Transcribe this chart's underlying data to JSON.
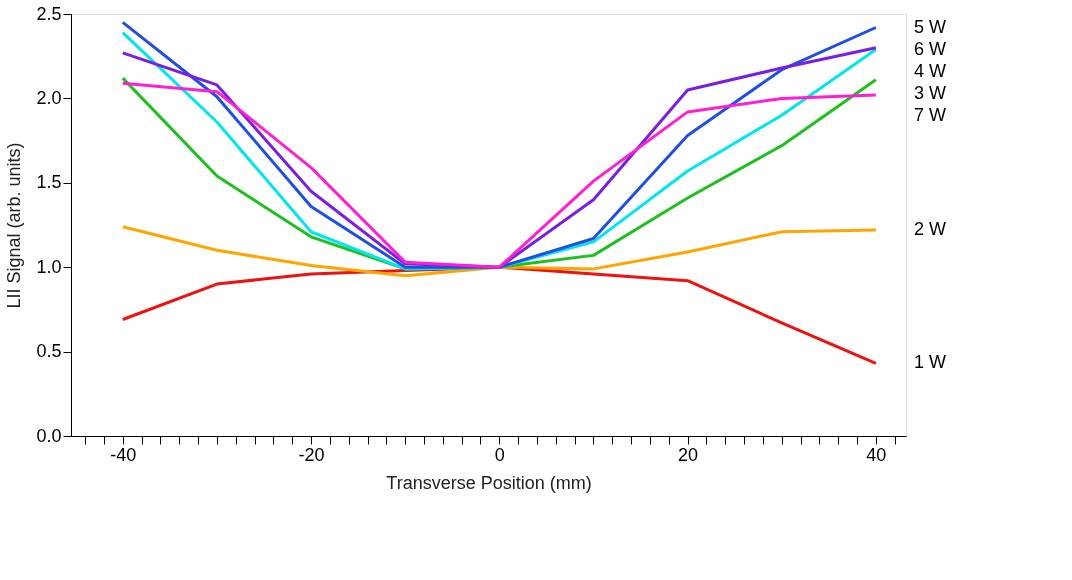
{
  "chart_data": {
    "type": "line",
    "xlabel": "Transverse Position (mm)",
    "ylabel": "LII Signal (arb. units)",
    "x": [
      -40,
      -30,
      -20,
      -10,
      0,
      10,
      20,
      30,
      40
    ],
    "series": [
      {
        "name": "1 W",
        "color": "#ee1111",
        "values": [
          0.69,
          0.9,
          0.96,
          0.98,
          1.0,
          0.96,
          0.92,
          0.67,
          0.43
        ]
      },
      {
        "name": "2 W",
        "color": "#ffa500",
        "values": [
          1.24,
          1.1,
          1.01,
          0.95,
          1.0,
          0.99,
          1.09,
          1.21,
          1.22
        ]
      },
      {
        "name": "3 W",
        "color": "#1fbf1f",
        "values": [
          2.12,
          1.54,
          1.18,
          0.99,
          1.0,
          1.07,
          1.41,
          1.72,
          2.11
        ]
      },
      {
        "name": "4 W",
        "color": "#00e5ee",
        "values": [
          2.39,
          1.86,
          1.21,
          0.99,
          1.0,
          1.15,
          1.57,
          1.9,
          2.29
        ]
      },
      {
        "name": "5 W",
        "color": "#1f4fe0",
        "values": [
          2.45,
          2.01,
          1.36,
          1.0,
          1.0,
          1.17,
          1.78,
          2.17,
          2.42
        ]
      },
      {
        "name": "6 W",
        "color": "#7a1fe0",
        "values": [
          2.27,
          2.08,
          1.45,
          1.02,
          1.0,
          1.4,
          2.05,
          2.18,
          2.3
        ]
      },
      {
        "name": "7 W",
        "color": "#ff1fd0",
        "values": [
          2.09,
          2.04,
          1.59,
          1.03,
          1.0,
          1.51,
          1.92,
          2.0,
          2.02
        ]
      }
    ],
    "xlim": [
      -45.5,
      43.2
    ],
    "xticks": [
      {
        "value": -44,
        "label": null
      },
      {
        "value": -42,
        "label": null
      },
      -40,
      {
        "value": -38,
        "label": null
      },
      {
        "value": -36,
        "label": null
      },
      {
        "value": -34,
        "label": null
      },
      {
        "value": -32,
        "label": null
      },
      {
        "value": -30,
        "label": null
      },
      {
        "value": -28,
        "label": null
      },
      {
        "value": -26,
        "label": null
      },
      {
        "value": -24,
        "label": null
      },
      {
        "value": -22,
        "label": null
      },
      -20,
      {
        "value": -18,
        "label": null
      },
      {
        "value": -16,
        "label": null
      },
      {
        "value": -14,
        "label": null
      },
      {
        "value": -12,
        "label": null
      },
      {
        "value": -10,
        "label": null
      },
      {
        "value": -8,
        "label": null
      },
      {
        "value": -6,
        "label": null
      },
      {
        "value": -4,
        "label": null
      },
      {
        "value": -2,
        "label": null
      },
      0,
      {
        "value": 2,
        "label": null
      },
      {
        "value": 4,
        "label": null
      },
      {
        "value": 6,
        "label": null
      },
      {
        "value": 8,
        "label": null
      },
      {
        "value": 10,
        "label": null
      },
      {
        "value": 12,
        "label": null
      },
      {
        "value": 14,
        "label": null
      },
      {
        "value": 16,
        "label": null
      },
      {
        "value": 18,
        "label": null
      },
      20,
      {
        "value": 22,
        "label": null
      },
      {
        "value": 24,
        "label": null
      },
      {
        "value": 26,
        "label": null
      },
      {
        "value": 28,
        "label": null
      },
      {
        "value": 30,
        "label": null
      },
      {
        "value": 32,
        "label": null
      },
      {
        "value": 34,
        "label": null
      },
      {
        "value": 36,
        "label": null
      },
      {
        "value": 38,
        "label": null
      },
      40,
      {
        "value": 42,
        "label": null
      }
    ],
    "ylim": [
      0,
      2.5
    ],
    "yticks": [
      {
        "value": 0,
        "label": "0.0"
      },
      0.5,
      {
        "value": 1,
        "label": "1.0"
      },
      1.5,
      {
        "value": 2,
        "label": "2.0"
      },
      2.5
    ],
    "grid": false,
    "legend": false,
    "marker": "none",
    "line_style": "solid"
  }
}
